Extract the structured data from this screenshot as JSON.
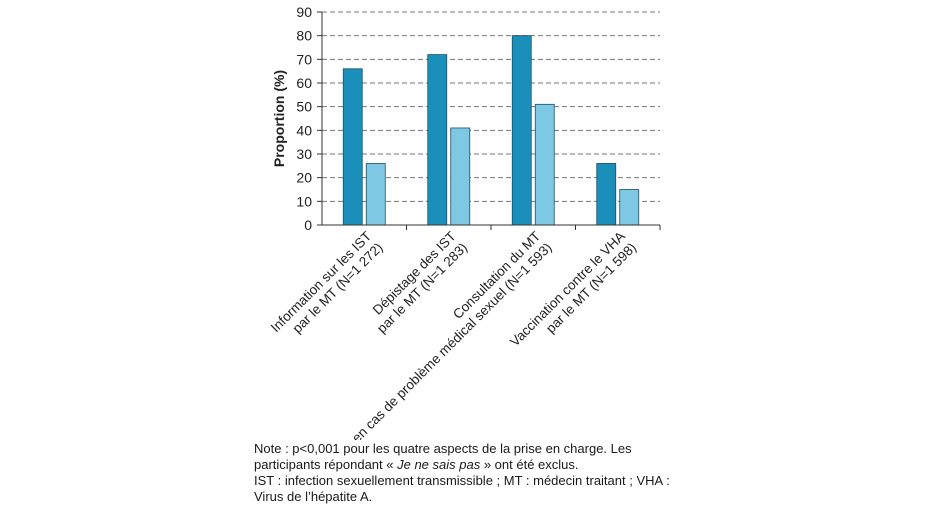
{
  "chart_data": {
    "type": "bar",
    "ylabel": "Proportion (%)",
    "ylim": [
      0,
      90
    ],
    "yticks": [
      0,
      10,
      20,
      30,
      40,
      50,
      60,
      70,
      80,
      90
    ],
    "grid": true,
    "categories": [
      [
        "Information sur les IST",
        "par le MT (N=1 272)"
      ],
      [
        "Dépistage des IST",
        "par le MT (N=1 283)"
      ],
      [
        "Consultation du MT",
        "en cas de problème médical sexuel (N=1 593)"
      ],
      [
        "Vaccination contre le VHA",
        "par le MT (N=1 598)"
      ]
    ],
    "series": [
      {
        "color": "#1a8fba",
        "values": [
          66,
          72,
          80,
          26
        ]
      },
      {
        "color": "#7ec8e3",
        "values": [
          26,
          41,
          51,
          15
        ]
      }
    ]
  },
  "note": {
    "line1_before": "Note : p<0,001 pour les quatre aspects de la prise en charge. Les participants répondant « ",
    "line1_italic": "Je ne sais pas",
    "line1_after": " » ont été exclus.",
    "line2": "IST : infection sexuellement transmissible ; MT : médecin traitant ; VHA : Virus de l’hépatite A."
  }
}
